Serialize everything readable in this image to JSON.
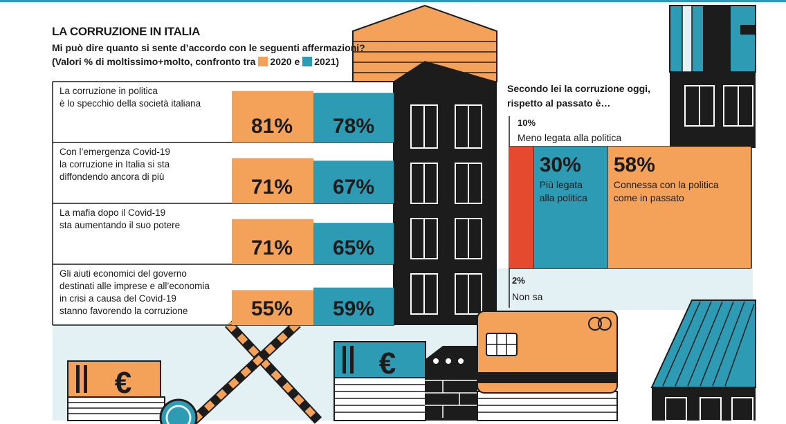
{
  "header": {
    "title": "LA CORRUZIONE IN ITALIA",
    "subtitle_line1": "Mi può dire quanto si sente d’accordo con le seguenti affermazioni?",
    "subtitle_line2_pre": "(Valori % di moltissimo+molto, confronto tra",
    "legend_2020": "2020 e",
    "legend_2021": "2021)"
  },
  "colors": {
    "y2020": "#f4a259",
    "y2021": "#2e9bb4",
    "meno": "#e64a2e",
    "dark": "#1c1c1c",
    "bg_blue": "#e3f0f4"
  },
  "chart_data": [
    {
      "type": "bar",
      "title": "LA CORRUZIONE IN ITALIA",
      "categories": [
        "La corruzione in politica è lo specchio della società italiana",
        "Con l’emergenza Covid-19 la corruzione in Italia si sta diffondendo ancora di più",
        "La mafia dopo il Covid-19 sta aumentando il suo potere",
        "Gli aiuti economici del governo destinati alle imprese e all’economia in crisi a causa del Covid-19 stanno favorendo la corruzione"
      ],
      "category_lines": [
        [
          "La corruzione in politica",
          "è lo specchio della società italiana"
        ],
        [
          "Con l’emergenza Covid-19",
          "la corruzione in Italia si sta",
          "diffondendo ancora di più"
        ],
        [
          "La mafia dopo il Covid-19",
          "sta aumentando il suo potere"
        ],
        [
          "Gli aiuti economici del governo",
          "destinati alle imprese e all’economia",
          "in crisi a causa del Covid-19",
          "stanno favorendo la corruzione"
        ]
      ],
      "series": [
        {
          "name": "2020",
          "values": [
            81,
            71,
            71,
            55
          ],
          "labels": [
            "81%",
            "71%",
            "71%",
            "55%"
          ]
        },
        {
          "name": "2021",
          "values": [
            78,
            67,
            65,
            59
          ],
          "labels": [
            "78%",
            "67%",
            "65%",
            "59%"
          ]
        }
      ],
      "unit": "%"
    },
    {
      "type": "bar",
      "title": "Secondo lei la corruzione oggi, rispetto al passato è…",
      "title_lines": [
        "Secondo lei la corruzione oggi,",
        "rispetto al passato è…"
      ],
      "segments": [
        {
          "label_lines": [
            "Meno legata alla politica"
          ],
          "value": 10,
          "pct": "10%"
        },
        {
          "label_lines": [
            "Più legata",
            "alla politica"
          ],
          "value": 30,
          "pct": "30%"
        },
        {
          "label_lines": [
            "Connessa con la politica",
            "come in passato"
          ],
          "value": 58,
          "pct": "58%"
        },
        {
          "label_lines": [
            "Non sa"
          ],
          "value": 2,
          "pct": "2%"
        }
      ],
      "unit": "%"
    }
  ]
}
